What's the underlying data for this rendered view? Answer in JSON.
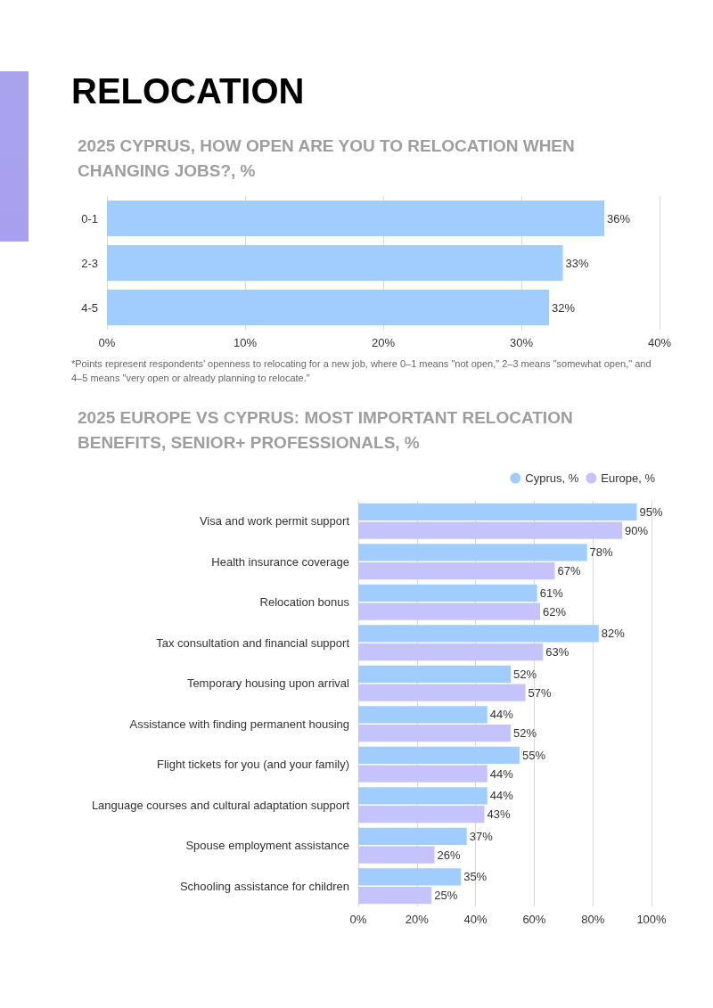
{
  "chart_data": [
    {
      "type": "bar",
      "orientation": "horizontal",
      "title": "RELOCATION",
      "subtitle": "2025 CYPRUS, HOW OPEN ARE YOU TO RELOCATION WHEN CHANGING JOBS?, %",
      "categories": [
        "0-1",
        "2-3",
        "4-5"
      ],
      "values": [
        36,
        33,
        32
      ],
      "value_labels": [
        "36%",
        "33%",
        "32%"
      ],
      "color": "#a0cdfc",
      "xlim": [
        0,
        40
      ],
      "xticks": [
        {
          "value": 0,
          "label": "0%"
        },
        {
          "value": 10,
          "label": "10%"
        },
        {
          "value": 20,
          "label": "20%"
        },
        {
          "value": 30,
          "label": "30%"
        },
        {
          "value": 40,
          "label": "40%"
        }
      ],
      "grid": "x",
      "annotations": [
        "*Points represent respondents’ openness to relocating for a new job, where 0–1 means \"not open,\" 2–3 means \"somewhat open,\" and 4–5 means \"very open or already planning to relocate.\""
      ]
    },
    {
      "type": "bar",
      "orientation": "horizontal",
      "title": "2025 EUROPE VS CYPRUS: MOST IMPORTANT RELOCATION BENEFITS, SENIOR+ PROFESSIONALS, %",
      "categories": [
        "Visa and work permit support",
        "Health insurance coverage",
        "Relocation bonus",
        "Tax consultation and financial support",
        "Temporary housing upon arrival",
        "Assistance with finding permanent housing",
        "Flight tickets for you (and your family)",
        "Language courses and cultural adaptation support",
        "Spouse employment assistance",
        "Schooling assistance for children"
      ],
      "series": [
        {
          "name": "Cyprus, %",
          "color": "#a0cdfc",
          "values": [
            95,
            78,
            61,
            82,
            52,
            44,
            55,
            44,
            37,
            35
          ],
          "value_labels": [
            "95%",
            "78%",
            "61%",
            "82%",
            "52%",
            "44%",
            "55%",
            "44%",
            "37%",
            "35%"
          ]
        },
        {
          "name": "Europe, %",
          "color": "#c5c3fb",
          "values": [
            90,
            67,
            62,
            63,
            57,
            52,
            44,
            43,
            26,
            25
          ],
          "value_labels": [
            "90%",
            "67%",
            "62%",
            "63%",
            "57%",
            "52%",
            "44%",
            "43%",
            "26%",
            "25%"
          ]
        }
      ],
      "xlim": [
        0,
        100
      ],
      "xticks": [
        {
          "value": 0,
          "label": "0%"
        },
        {
          "value": 20,
          "label": "20%"
        },
        {
          "value": 40,
          "label": "40%"
        },
        {
          "value": 60,
          "label": "60%"
        },
        {
          "value": 80,
          "label": "80%"
        },
        {
          "value": 100,
          "label": "100%"
        }
      ],
      "grid": "x",
      "legend": "top right"
    }
  ]
}
